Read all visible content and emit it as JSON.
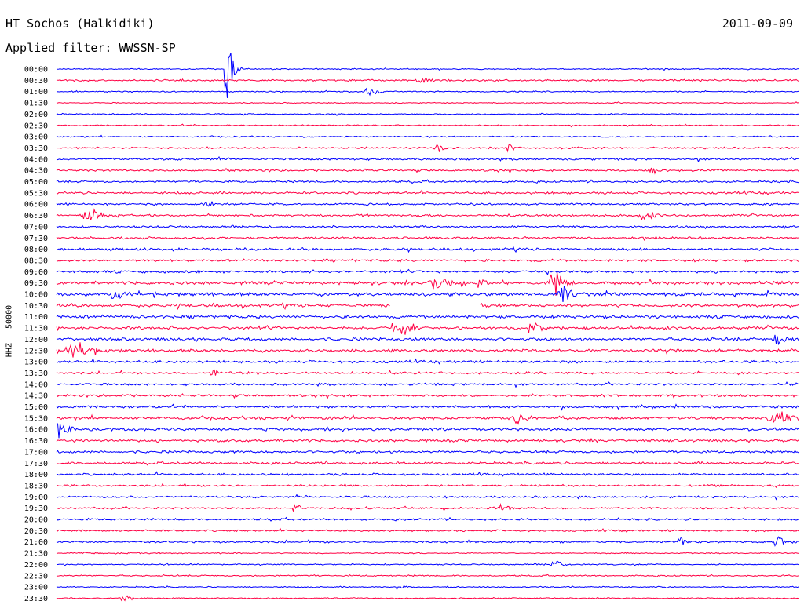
{
  "header": {
    "station": "HT Sochos (Halkidiki)",
    "date": "2011-09-09",
    "filter": "Applied filter: WWSSN-SP"
  },
  "side_label": "HHZ - 50000",
  "colors": {
    "even_row": "#0000ff",
    "odd_row": "#ff0044",
    "text": "#000000",
    "background": "#ffffff"
  },
  "chart_data": {
    "type": "line",
    "title": "HT Sochos (Halkidiki)",
    "subtitle": "Applied filter: WWSSN-SP",
    "ylabel": "HHZ - 50000",
    "grid": false,
    "row_labels": [
      "00:00",
      "00:30",
      "01:00",
      "01:30",
      "02:00",
      "02:30",
      "03:00",
      "03:30",
      "04:00",
      "04:30",
      "05:00",
      "05:30",
      "06:00",
      "06:30",
      "07:00",
      "07:30",
      "08:00",
      "08:30",
      "09:00",
      "09:30",
      "10:00",
      "10:30",
      "11:00",
      "11:30",
      "12:00",
      "12:30",
      "13:00",
      "13:30",
      "14:00",
      "14:30",
      "15:00",
      "15:30",
      "16:00",
      "16:30",
      "17:00",
      "17:30",
      "18:00",
      "18:30",
      "19:00",
      "19:30",
      "20:00",
      "20:30",
      "21:00",
      "21:30",
      "22:00",
      "22:30",
      "23:00",
      "23:30"
    ],
    "row_noise": [
      0.6,
      0.9,
      0.6,
      0.5,
      0.6,
      0.6,
      0.6,
      0.9,
      1.0,
      1.0,
      1.0,
      1.1,
      1.0,
      1.1,
      1.0,
      1.1,
      1.2,
      1.2,
      1.2,
      1.6,
      1.6,
      1.5,
      1.5,
      1.4,
      1.5,
      1.4,
      1.3,
      1.1,
      1.1,
      1.2,
      1.2,
      1.4,
      1.4,
      1.3,
      1.2,
      1.2,
      1.1,
      1.0,
      1.0,
      1.0,
      1.0,
      0.9,
      1.0,
      0.6,
      0.6,
      0.7,
      0.6,
      0.6
    ],
    "events": [
      {
        "row": 0,
        "x": 0.23,
        "amp": 40,
        "width": 0.015
      },
      {
        "row": 1,
        "x": 0.49,
        "amp": 4,
        "width": 0.02
      },
      {
        "row": 2,
        "x": 0.42,
        "amp": 5,
        "width": 0.02
      },
      {
        "row": 7,
        "x": 0.51,
        "amp": 6,
        "width": 0.015
      },
      {
        "row": 7,
        "x": 0.61,
        "amp": 5,
        "width": 0.01
      },
      {
        "row": 9,
        "x": 0.8,
        "amp": 8,
        "width": 0.01
      },
      {
        "row": 12,
        "x": 0.2,
        "amp": 5,
        "width": 0.015
      },
      {
        "row": 13,
        "x": 0.04,
        "amp": 6,
        "width": 0.03
      },
      {
        "row": 13,
        "x": 0.79,
        "amp": 6,
        "width": 0.02
      },
      {
        "row": 19,
        "x": 0.51,
        "amp": 7,
        "width": 0.03
      },
      {
        "row": 19,
        "x": 0.57,
        "amp": 10,
        "width": 0.01
      },
      {
        "row": 19,
        "x": 0.67,
        "amp": 14,
        "width": 0.02
      },
      {
        "row": 20,
        "x": 0.08,
        "amp": 7,
        "width": 0.02
      },
      {
        "row": 20,
        "x": 0.68,
        "amp": 16,
        "width": 0.015
      },
      {
        "row": 23,
        "x": 0.46,
        "amp": 10,
        "width": 0.03
      },
      {
        "row": 23,
        "x": 0.64,
        "amp": 8,
        "width": 0.015
      },
      {
        "row": 24,
        "x": 0.97,
        "amp": 6,
        "width": 0.02
      },
      {
        "row": 25,
        "x": 0.02,
        "amp": 11,
        "width": 0.035
      },
      {
        "row": 27,
        "x": 0.21,
        "amp": 7,
        "width": 0.015
      },
      {
        "row": 31,
        "x": 0.31,
        "amp": 6,
        "width": 0.01
      },
      {
        "row": 31,
        "x": 0.62,
        "amp": 6,
        "width": 0.02
      },
      {
        "row": 31,
        "x": 0.97,
        "amp": 8,
        "width": 0.04
      },
      {
        "row": 32,
        "x": 0.0,
        "amp": 10,
        "width": 0.02
      },
      {
        "row": 39,
        "x": 0.32,
        "amp": 6,
        "width": 0.01
      },
      {
        "row": 39,
        "x": 0.6,
        "amp": 7,
        "width": 0.015
      },
      {
        "row": 42,
        "x": 0.84,
        "amp": 9,
        "width": 0.01
      },
      {
        "row": 42,
        "x": 0.97,
        "amp": 8,
        "width": 0.01
      },
      {
        "row": 44,
        "x": 0.67,
        "amp": 7,
        "width": 0.015
      },
      {
        "row": 46,
        "x": 0.46,
        "amp": 5,
        "width": 0.01
      },
      {
        "row": 47,
        "x": 0.09,
        "amp": 5,
        "width": 0.01
      }
    ],
    "gaps": [
      {
        "row": 21,
        "start": 0.45,
        "end": 0.57
      }
    ]
  }
}
